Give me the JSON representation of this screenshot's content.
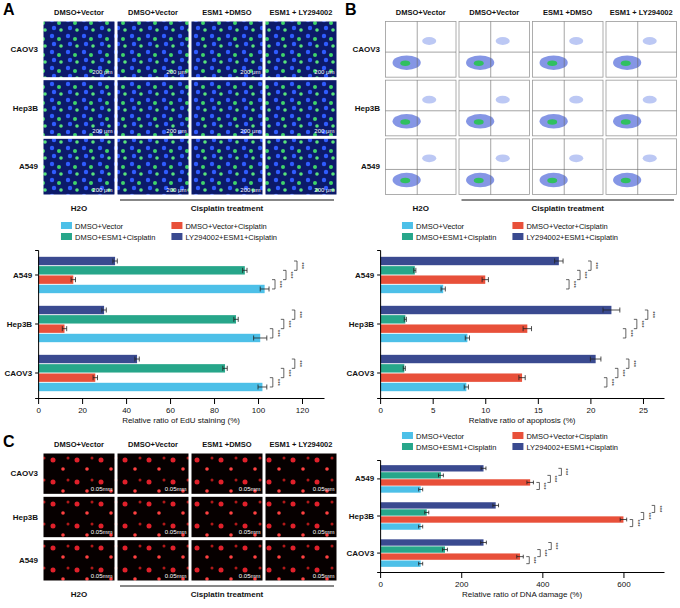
{
  "panels": [
    {
      "letter": "A",
      "type": "fluorescence",
      "columns": [
        "DMSO+Vector",
        "DMSO+Vector",
        "ESM1 +DMSO",
        "ESM1 + LY294002"
      ],
      "rows": [
        "CAOV3",
        "Hep3B",
        "A549"
      ],
      "scale_bar": "200 μm",
      "groups": [
        "H2O",
        "Cisplatin treatment"
      ]
    },
    {
      "letter": "B",
      "type": "flow_cytometry",
      "columns": [
        "DMSO+Vector",
        "DMSO+Vector",
        "ESM1 +DMSO",
        "ESM1 + LY294002"
      ],
      "rows": [
        "CAOV3",
        "Hep3B",
        "A549"
      ],
      "groups": [
        "H2O",
        "Cisplatin treatment"
      ]
    },
    {
      "letter": "C",
      "type": "comet",
      "columns": [
        "DMSO+Vector",
        "DMSO+Vector",
        "ESM1 +DMSO",
        "ESM1 + LY294002"
      ],
      "rows": [
        "CAOV3",
        "Hep3B",
        "A549"
      ],
      "scale_bar": "0.05mm",
      "groups": [
        "H2O",
        "Cisplatin treatment"
      ]
    }
  ],
  "chart_data": [
    {
      "type": "bar",
      "orientation": "horizontal",
      "legend": "top",
      "x_label": "Relative ratio of EdU staining (%)",
      "annotation": "***",
      "categories": [
        "CAOV3",
        "Hep3B",
        "A549"
      ],
      "series": [
        {
          "name": "DMSO+Vector",
          "color": "#4dc0e8",
          "values": [
            102,
            101,
            103
          ],
          "errors": [
            2,
            3,
            2
          ]
        },
        {
          "name": "DMSO+Vector+Cisplatin",
          "color": "#e8503a",
          "values": [
            26,
            12,
            16
          ],
          "errors": [
            1,
            1,
            1
          ]
        },
        {
          "name": "DMSO+ESM1+Cisplatin",
          "color": "#27a68a",
          "values": [
            85,
            90,
            94
          ],
          "errors": [
            1,
            1,
            1
          ]
        },
        {
          "name": "LY294002+ESM1+Cisplatin",
          "color": "#3a4a90",
          "values": [
            45,
            30,
            35
          ],
          "errors": [
            1,
            1,
            1
          ]
        }
      ],
      "xlim": [
        0,
        130
      ],
      "xticks": [
        0,
        20,
        40,
        60,
        80,
        100,
        120
      ]
    },
    {
      "type": "bar",
      "orientation": "horizontal",
      "legend": "top",
      "x_label": "Relative ratio of apoptosis (%)",
      "annotation": "***",
      "categories": [
        "CAOV3",
        "Hep3B",
        "A549"
      ],
      "series": [
        {
          "name": "DMSO+Vector",
          "color": "#4dc0e8",
          "values": [
            8.2,
            8.3,
            6
          ],
          "errors": [
            0.2,
            0.2,
            0.2
          ]
        },
        {
          "name": "DMSO+Vector+Cisplatin",
          "color": "#e8503a",
          "values": [
            13.5,
            14,
            10
          ],
          "errors": [
            0.3,
            0.4,
            0.3
          ]
        },
        {
          "name": "DMSO+ESM1+Cisplatin",
          "color": "#27a68a",
          "values": [
            2.3,
            2.4,
            3.3
          ],
          "errors": [
            0.1,
            0.1,
            0.1
          ]
        },
        {
          "name": "LY294002+ESM1+Cisplatin",
          "color": "#3a4a90",
          "values": [
            20.5,
            22,
            17
          ],
          "errors": [
            0.5,
            0.8,
            0.4
          ]
        }
      ],
      "xlim": [
        0,
        27
      ],
      "xticks": [
        0,
        5,
        10,
        15,
        20,
        25
      ]
    },
    {
      "type": "bar",
      "orientation": "horizontal",
      "legend": "top",
      "x_label": "Relative ratio of DNA damage (%)",
      "annotation": "***",
      "categories": [
        "CAOV3",
        "Hep3B",
        "A549"
      ],
      "series": [
        {
          "name": "DMSO+Vector",
          "color": "#4dc0e8",
          "values": [
            100,
            100,
            100
          ],
          "errors": [
            5,
            5,
            5
          ]
        },
        {
          "name": "DMSO+Vector+Cisplatin",
          "color": "#e8503a",
          "values": [
            345,
            600,
            370
          ],
          "errors": [
            8,
            8,
            8
          ]
        },
        {
          "name": "DMSO+ESM1+Cisplatin",
          "color": "#27a68a",
          "values": [
            160,
            115,
            150
          ],
          "errors": [
            6,
            5,
            6
          ]
        },
        {
          "name": "LY294002+ESM1+Cisplatin",
          "color": "#3a4a90",
          "values": [
            255,
            285,
            255
          ],
          "errors": [
            7,
            7,
            6
          ]
        }
      ],
      "xlim": [
        0,
        700
      ],
      "xticks": [
        0,
        200,
        400,
        600
      ]
    }
  ]
}
